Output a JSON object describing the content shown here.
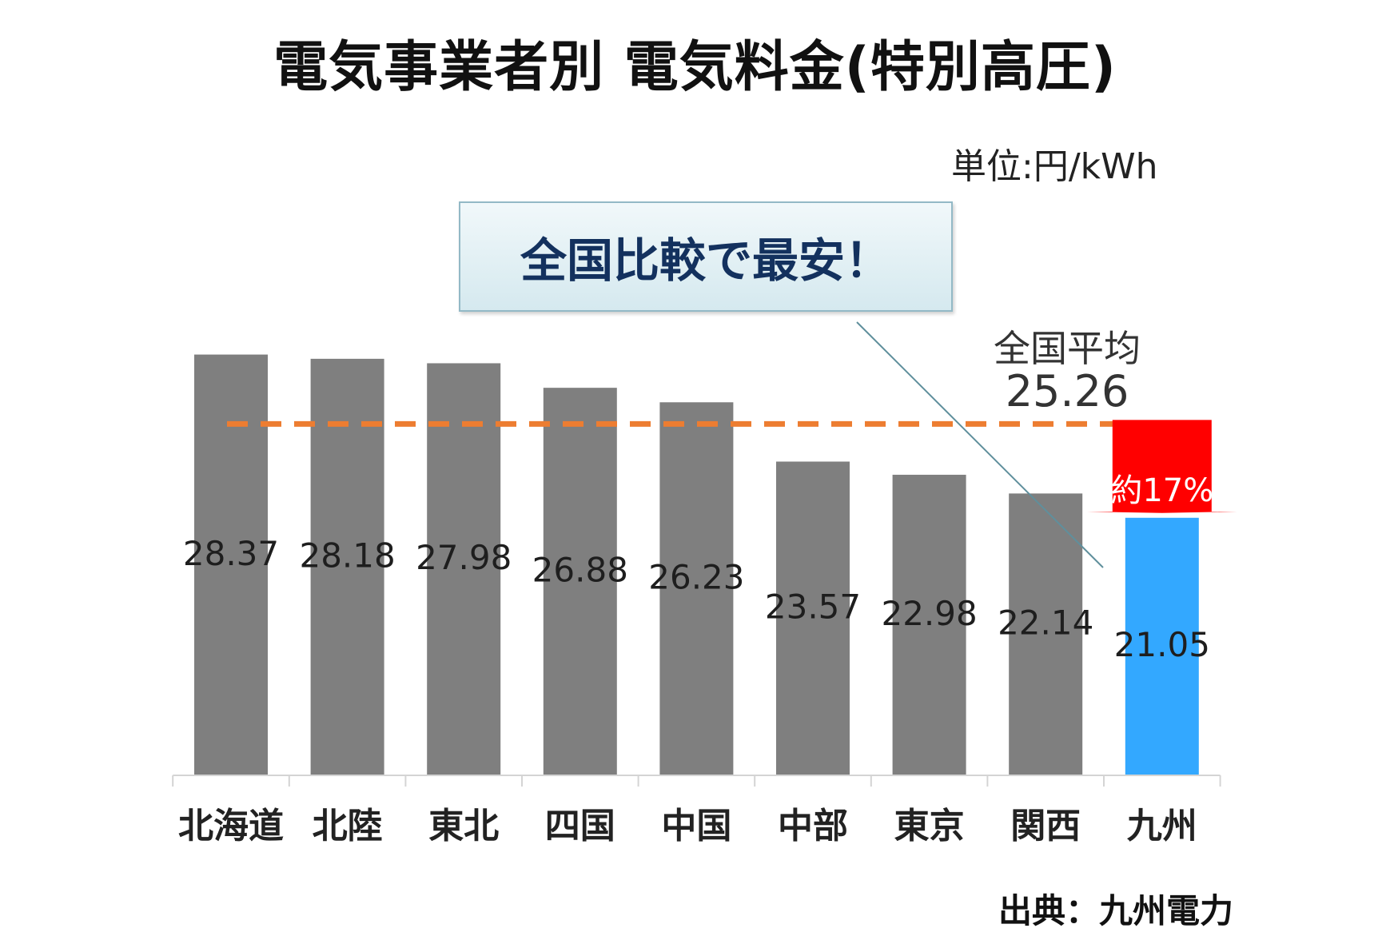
{
  "title": "電気事業者別 電気料金(特別高圧)",
  "unit_label": "単位:円/kWh",
  "callout_text": "全国比較で最安！",
  "average": {
    "label": "全国平均",
    "value_text": "25.26",
    "value": 25.26
  },
  "highlight": {
    "arrow_label": "約17%"
  },
  "source": "出典：九州電力",
  "colors": {
    "bar": "#7f7f7f",
    "highlight_bar": "#33a8ff",
    "average_line": "#ed7d31",
    "arrow": "#ff0000",
    "callout_text": "#13315e"
  },
  "chart_data": {
    "type": "bar",
    "title": "電気事業者別 電気料金(特別高圧)",
    "ylabel": "単位:円/kWh",
    "categories": [
      "北海道",
      "北陸",
      "東北",
      "四国",
      "中国",
      "中部",
      "東京",
      "関西",
      "九州"
    ],
    "values": [
      28.37,
      28.18,
      27.98,
      26.88,
      26.23,
      23.57,
      22.98,
      22.14,
      21.05
    ],
    "value_labels": [
      "28.37",
      "28.18",
      "27.98",
      "26.88",
      "26.23",
      "23.57",
      "22.98",
      "22.14",
      "21.05"
    ],
    "highlight_category": "九州",
    "reference_line": {
      "label": "全国平均",
      "value": 25.26,
      "style": "dashed"
    },
    "ylim": [
      9.5,
      29.0
    ],
    "grid": false,
    "legend": "none"
  }
}
